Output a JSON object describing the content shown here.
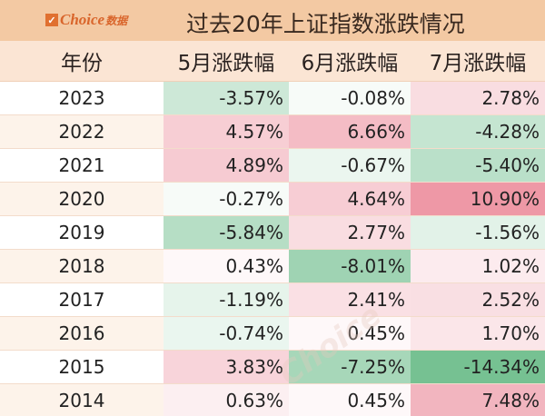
{
  "brand": {
    "logo": "Choice数据"
  },
  "chart_data": {
    "type": "table",
    "title": "过去20年上证指数涨跌情况",
    "columns": [
      "年份",
      "5月涨跌幅",
      "6月涨跌幅",
      "7月涨跌幅"
    ],
    "rows": [
      {
        "year": "2023",
        "values": [
          "-3.57%",
          "-0.08%",
          "2.78%"
        ]
      },
      {
        "year": "2022",
        "values": [
          "4.57%",
          "6.66%",
          "-4.28%"
        ]
      },
      {
        "year": "2021",
        "values": [
          "4.89%",
          "-0.67%",
          "-5.40%"
        ]
      },
      {
        "year": "2020",
        "values": [
          "-0.27%",
          "4.64%",
          "10.90%"
        ]
      },
      {
        "year": "2019",
        "values": [
          "-5.84%",
          "2.77%",
          "-1.56%"
        ]
      },
      {
        "year": "2018",
        "values": [
          "0.43%",
          "-8.01%",
          "1.02%"
        ]
      },
      {
        "year": "2017",
        "values": [
          "-1.19%",
          "2.41%",
          "2.52%"
        ]
      },
      {
        "year": "2016",
        "values": [
          "-0.74%",
          "0.45%",
          "1.70%"
        ]
      },
      {
        "year": "2015",
        "values": [
          "3.83%",
          "-7.25%",
          "-14.34%"
        ]
      },
      {
        "year": "2014",
        "values": [
          "0.63%",
          "0.45%",
          "7.48%"
        ]
      }
    ],
    "colors": {
      "positive": "#e8788a",
      "negative": "#5ab47c"
    }
  }
}
